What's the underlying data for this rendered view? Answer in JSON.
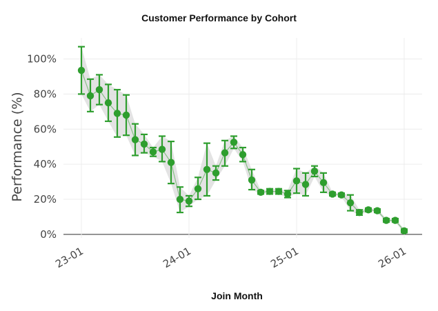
{
  "chart_data": {
    "type": "line",
    "title": "Customer Performance by Cohort",
    "xlabel": "Join Month",
    "ylabel": "Performance (%)",
    "x_ticks": [
      "23-01",
      "24-01",
      "25-01",
      "26-01"
    ],
    "y_ticks": [
      "0%",
      "20%",
      "40%",
      "60%",
      "80%",
      "100%"
    ],
    "ylim": [
      -2,
      112
    ],
    "xlim": [
      "2022-11",
      "2026-03"
    ],
    "grid": true,
    "series": [
      {
        "color": "#2e9e2e",
        "band_color": "#dcdcdc",
        "x": [
          "2023-01",
          "2023-02",
          "2023-03",
          "2023-04",
          "2023-05",
          "2023-06",
          "2023-07",
          "2023-08",
          "2023-09",
          "2023-10",
          "2023-11",
          "2023-12",
          "2024-01",
          "2024-02",
          "2024-03",
          "2024-04",
          "2024-05",
          "2024-06",
          "2024-07",
          "2024-08",
          "2024-09",
          "2024-10",
          "2024-11",
          "2024-12",
          "2025-01",
          "2025-02",
          "2025-03",
          "2025-04",
          "2025-05",
          "2025-06",
          "2025-07",
          "2025-08",
          "2025-09",
          "2025-10",
          "2025-11",
          "2025-12",
          "2026-01"
        ],
        "y": [
          93.5,
          79,
          82.5,
          75,
          69,
          68,
          54,
          51.5,
          47,
          48.5,
          41,
          20,
          19,
          26,
          37,
          35,
          46.5,
          52.5,
          45.5,
          31,
          24,
          24.5,
          24.5,
          23,
          30.5,
          28.5,
          36,
          29.5,
          23,
          22.5,
          18,
          12.5,
          14,
          13.5,
          8,
          8,
          2
        ],
        "lower": [
          80,
          70,
          74,
          64.5,
          55.5,
          56.5,
          45,
          46.5,
          44.5,
          41.5,
          29,
          12.5,
          16,
          20,
          22,
          31,
          39,
          49,
          41.5,
          25.5,
          23,
          23,
          23,
          21,
          23.5,
          22,
          33,
          24,
          22,
          21.5,
          13.5,
          11,
          13,
          12.5,
          7,
          7,
          1
        ],
        "upper": [
          107,
          88.5,
          91,
          85.5,
          82.5,
          79.5,
          63,
          57,
          49.5,
          56,
          53,
          27,
          22,
          32.5,
          52,
          39,
          53.5,
          56,
          49.5,
          37,
          25,
          26,
          26,
          25,
          37.5,
          35,
          39,
          35,
          24,
          23.5,
          22.5,
          14,
          15,
          14.5,
          9,
          9,
          3
        ]
      }
    ]
  }
}
